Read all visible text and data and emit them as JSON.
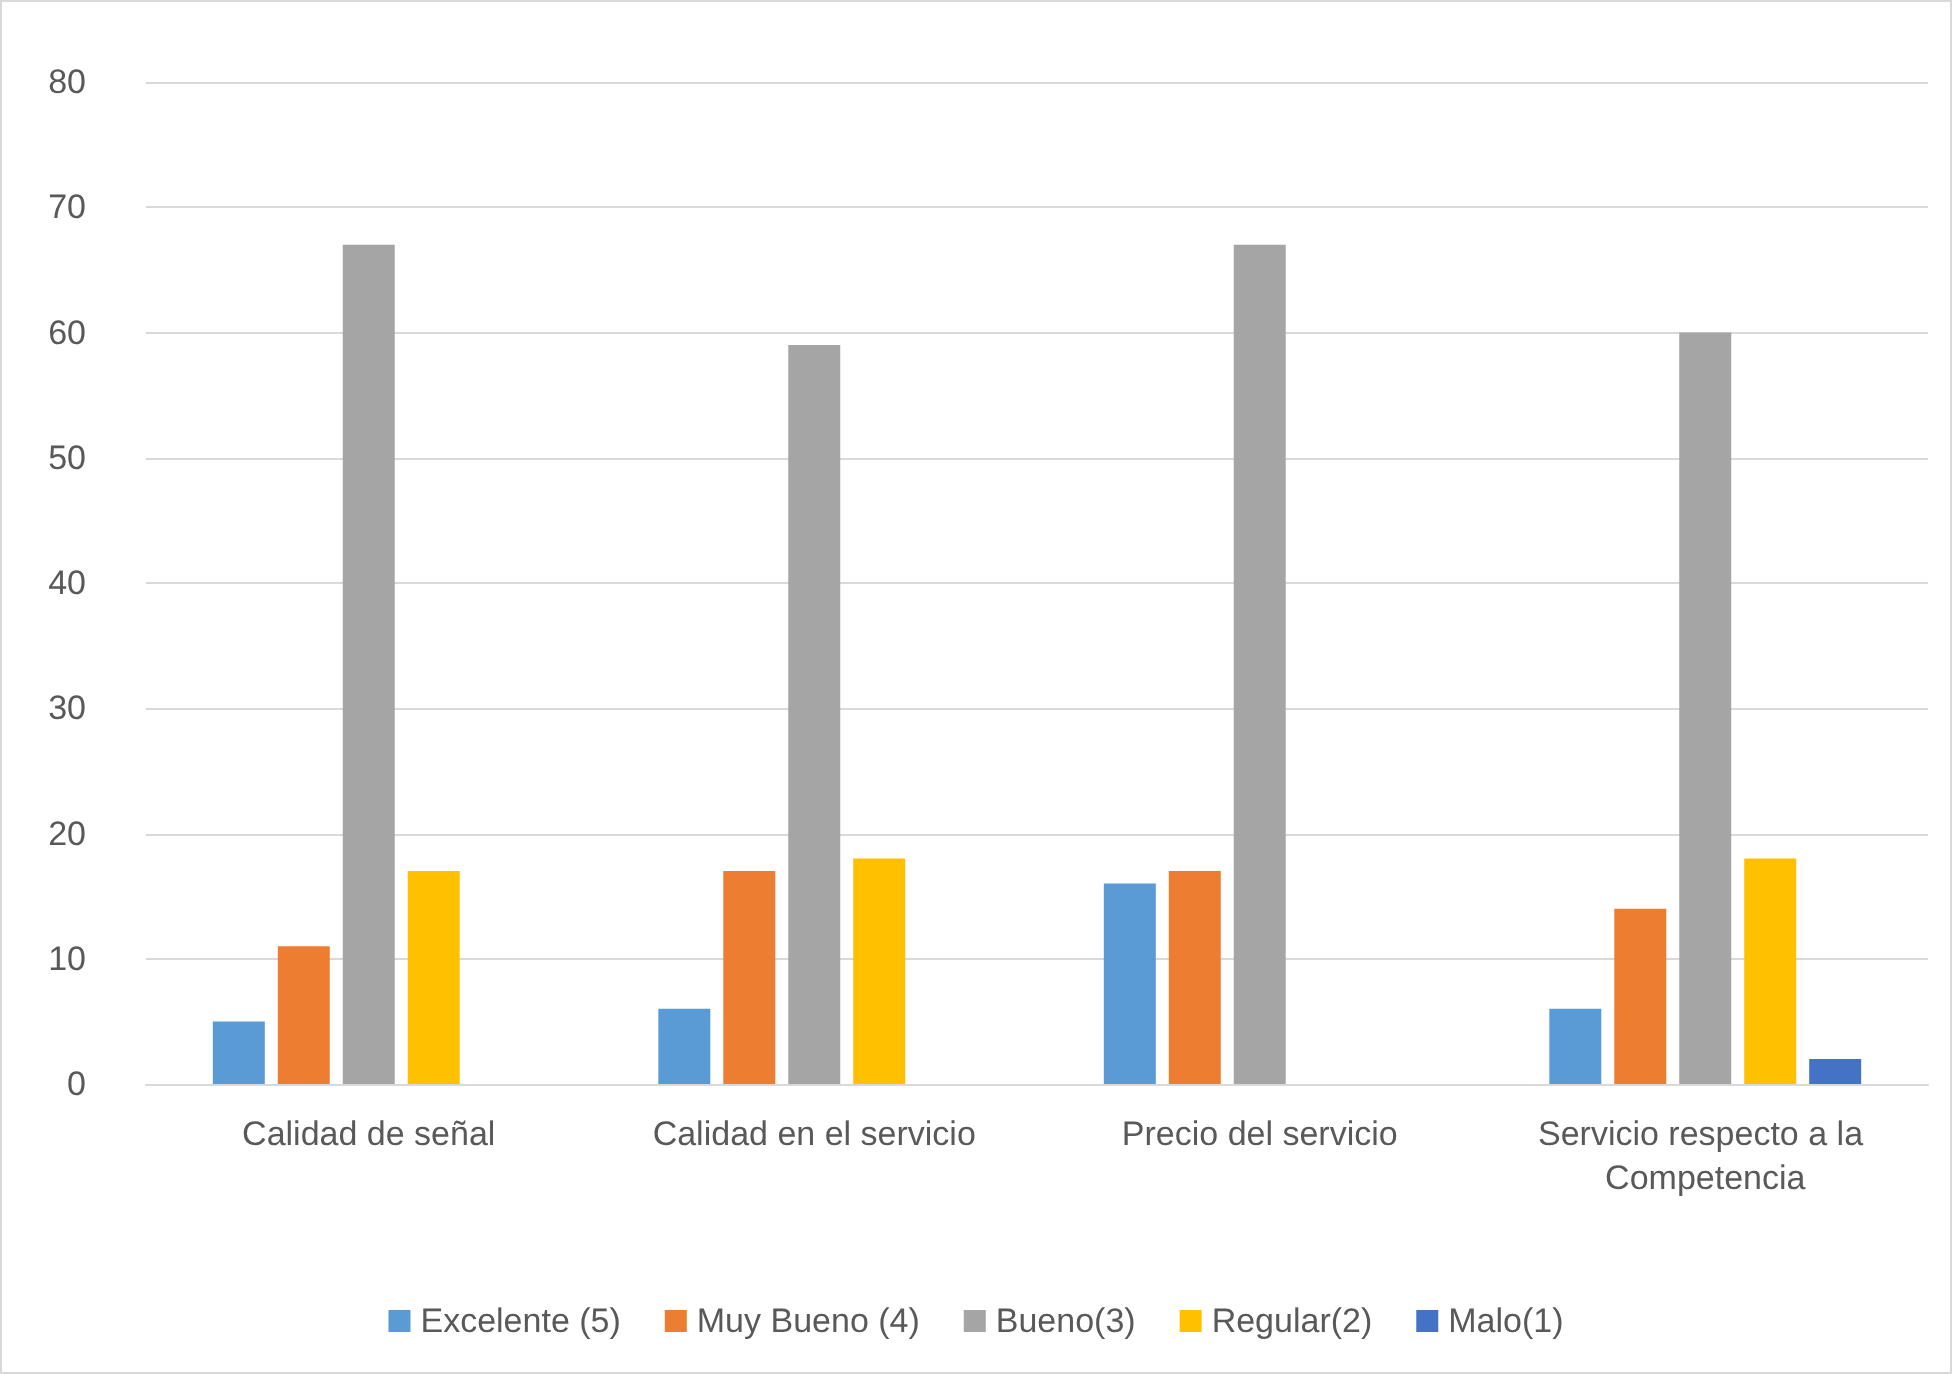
{
  "chart_data": {
    "type": "bar",
    "categories": [
      "Calidad de señal",
      "Calidad en el servicio",
      "Precio del servicio",
      "Servicio respecto a la Competencia"
    ],
    "series": [
      {
        "name": "Excelente (5)",
        "color": "#5b9bd5",
        "values": [
          5,
          6,
          16,
          6
        ]
      },
      {
        "name": "Muy Bueno (4)",
        "color": "#ed7d31",
        "values": [
          11,
          17,
          17,
          14
        ]
      },
      {
        "name": "Bueno(3)",
        "color": "#a5a5a5",
        "values": [
          67,
          59,
          67,
          60
        ]
      },
      {
        "name": "Regular(2)",
        "color": "#ffc000",
        "values": [
          17,
          18,
          0,
          18
        ]
      },
      {
        "name": "Malo(1)",
        "color": "#4472c4",
        "values": [
          0,
          0,
          0,
          2
        ]
      }
    ],
    "ylim": [
      0,
      80
    ],
    "yticks": [
      0,
      10,
      20,
      30,
      40,
      50,
      60,
      70,
      80
    ],
    "grid": "y",
    "legend": "bottom"
  }
}
